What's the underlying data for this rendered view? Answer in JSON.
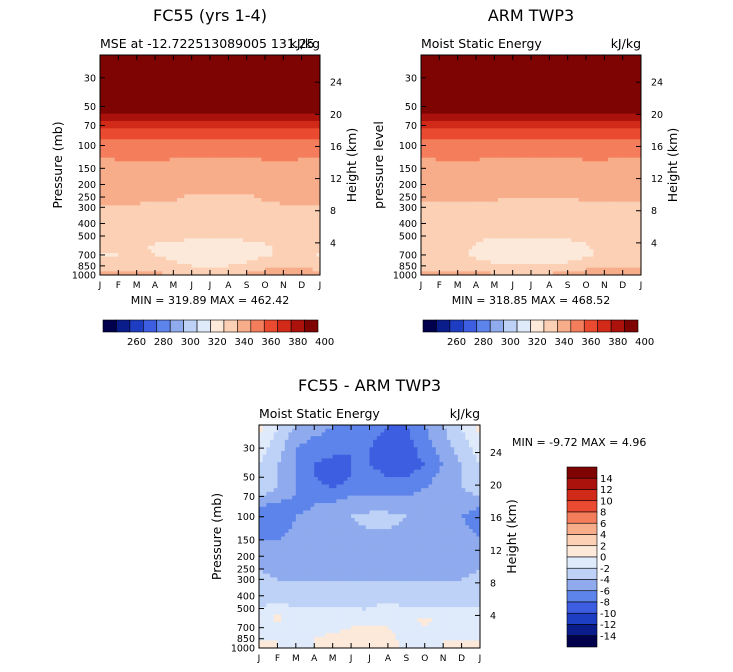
{
  "chart_data": [
    {
      "type": "contour",
      "title": "FC55 (yrs 1-4)",
      "subtitle_left": "MSE at -12.722513089005 131.25",
      "subtitle_right": "kJ/kg",
      "ylabel": "Pressure (mb)",
      "ylabel_right": "Height (km)",
      "x_ticks": [
        "J",
        "F",
        "M",
        "A",
        "M",
        "J",
        "J",
        "A",
        "S",
        "O",
        "N",
        "D",
        "J"
      ],
      "pressure_ticks": [
        30,
        50,
        70,
        100,
        150,
        200,
        250,
        300,
        400,
        500,
        700,
        850,
        1000
      ],
      "height_ticks": [
        24,
        20,
        16,
        12,
        8,
        4
      ],
      "ylim": [
        1000,
        20
      ],
      "min_text": "MIN = 319.89 MAX = 462.42",
      "field": {
        "months": [
          "J",
          "F",
          "M",
          "A",
          "M",
          "J",
          "J",
          "A",
          "S",
          "O",
          "N",
          "D",
          "J"
        ],
        "pressure_levels": [
          20,
          30,
          40,
          50,
          60,
          70,
          85,
          100,
          150,
          200,
          250,
          300,
          400,
          500,
          600,
          700,
          850,
          1000
        ],
        "values": [
          [
            462,
            462,
            462,
            462,
            462,
            462,
            462,
            462,
            462,
            462,
            462,
            462,
            462
          ],
          [
            430,
            431,
            432,
            432,
            431,
            430,
            430,
            431,
            432,
            432,
            431,
            430,
            430
          ],
          [
            410,
            411,
            411,
            411,
            410,
            410,
            410,
            410,
            410,
            410,
            410,
            410,
            410
          ],
          [
            398,
            399,
            400,
            400,
            399,
            398,
            398,
            398,
            399,
            400,
            400,
            399,
            398
          ],
          [
            385,
            386,
            386,
            386,
            385,
            385,
            385,
            385,
            386,
            386,
            386,
            385,
            385
          ],
          [
            371,
            372,
            373,
            373,
            372,
            371,
            371,
            371,
            372,
            373,
            373,
            372,
            371
          ],
          [
            361,
            362,
            362,
            362,
            361,
            361,
            361,
            361,
            362,
            362,
            362,
            361,
            361
          ],
          [
            354,
            355,
            355,
            355,
            354,
            354,
            354,
            354,
            355,
            355,
            355,
            354,
            354
          ],
          [
            347,
            347,
            348,
            348,
            347,
            346,
            346,
            346,
            346,
            347,
            348,
            347,
            347
          ],
          [
            345,
            345,
            345,
            345,
            344,
            343,
            343,
            343,
            343,
            345,
            345,
            345,
            345
          ],
          [
            343,
            343,
            342,
            341,
            341,
            339,
            339,
            339,
            339,
            341,
            342,
            343,
            343
          ],
          [
            339,
            339,
            339,
            338,
            338,
            338,
            337,
            337,
            337,
            338,
            339,
            339,
            339
          ],
          [
            337,
            336,
            336,
            335,
            335,
            335,
            335,
            335,
            335,
            335,
            336,
            336,
            337
          ],
          [
            335,
            334,
            334,
            333,
            333,
            332,
            332,
            332,
            333,
            333,
            334,
            334,
            335
          ],
          [
            333,
            332,
            332,
            329,
            327,
            326,
            325,
            325,
            326,
            329,
            332,
            333,
            333
          ],
          [
            329,
            330,
            332,
            330,
            327,
            322,
            321,
            322,
            325,
            329,
            332,
            333,
            329
          ],
          [
            336,
            336,
            336,
            335,
            333,
            330,
            329,
            330,
            333,
            336,
            337,
            337,
            336
          ],
          [
            345,
            345,
            345,
            343,
            340,
            340,
            340,
            340,
            342,
            346,
            347,
            346,
            345
          ]
        ]
      },
      "colorbar": {
        "labels": [
          "260",
          "280",
          "300",
          "320",
          "340",
          "360",
          "380",
          "400"
        ]
      }
    },
    {
      "type": "contour",
      "title": "ARM TWP3",
      "subtitle_left": "Moist Static Energy",
      "subtitle_right": "kJ/kg",
      "ylabel": "pressure level",
      "ylabel_right": "Height (km)",
      "x_ticks": [
        "J",
        "F",
        "M",
        "A",
        "M",
        "J",
        "J",
        "A",
        "S",
        "O",
        "N",
        "D",
        "J"
      ],
      "pressure_ticks": [
        30,
        50,
        70,
        100,
        150,
        200,
        250,
        300,
        400,
        500,
        700,
        850,
        1000
      ],
      "height_ticks": [
        24,
        20,
        16,
        12,
        8,
        4
      ],
      "ylim": [
        1000,
        20
      ],
      "min_text": "MIN = 318.85 MAX = 468.52",
      "field": {
        "months": [
          "J",
          "F",
          "M",
          "A",
          "M",
          "J",
          "J",
          "A",
          "S",
          "O",
          "N",
          "D",
          "J"
        ],
        "pressure_levels": [
          20,
          30,
          40,
          50,
          60,
          70,
          85,
          100,
          150,
          200,
          250,
          300,
          400,
          500,
          600,
          700,
          850,
          1000
        ],
        "values": [
          [
            468,
            468,
            468,
            468,
            468,
            468,
            468,
            468,
            468,
            468,
            468,
            468,
            468
          ],
          [
            440,
            440,
            440,
            440,
            440,
            440,
            440,
            440,
            440,
            440,
            440,
            440,
            440
          ],
          [
            412,
            412,
            412,
            412,
            412,
            412,
            412,
            412,
            412,
            412,
            412,
            412,
            412
          ],
          [
            398,
            399,
            400,
            401,
            400,
            399,
            399,
            399,
            399,
            400,
            400,
            399,
            398
          ],
          [
            386,
            387,
            387,
            387,
            386,
            386,
            386,
            386,
            387,
            387,
            387,
            386,
            386
          ],
          [
            373,
            373,
            374,
            374,
            373,
            372,
            372,
            372,
            373,
            374,
            374,
            373,
            373
          ],
          [
            362,
            362,
            363,
            363,
            362,
            362,
            362,
            362,
            362,
            363,
            363,
            362,
            362
          ],
          [
            354,
            355,
            355,
            355,
            354,
            354,
            354,
            354,
            354,
            355,
            355,
            354,
            354
          ],
          [
            347,
            347,
            347,
            347,
            347,
            347,
            347,
            347,
            347,
            347,
            347,
            347,
            347
          ],
          [
            345,
            345,
            344,
            344,
            343,
            343,
            343,
            343,
            344,
            344,
            345,
            345,
            345
          ],
          [
            341,
            341,
            341,
            341,
            341,
            340,
            340,
            340,
            340,
            341,
            341,
            341,
            341
          ],
          [
            339,
            339,
            339,
            339,
            338,
            338,
            338,
            338,
            338,
            339,
            339,
            339,
            339
          ],
          [
            336,
            336,
            336,
            335,
            334,
            334,
            334,
            334,
            335,
            336,
            336,
            336,
            336
          ],
          [
            334,
            334,
            334,
            333,
            331,
            331,
            331,
            331,
            332,
            334,
            334,
            334,
            334
          ],
          [
            333,
            333,
            333,
            329,
            325,
            324,
            324,
            324,
            326,
            329,
            333,
            333,
            333
          ],
          [
            333,
            333,
            333,
            328,
            324,
            321,
            320,
            321,
            324,
            328,
            333,
            333,
            333
          ],
          [
            336,
            336,
            336,
            334,
            332,
            331,
            331,
            331,
            333,
            336,
            337,
            337,
            336
          ],
          [
            346,
            346,
            346,
            344,
            341,
            341,
            341,
            342,
            343,
            346,
            347,
            346,
            346
          ]
        ]
      },
      "colorbar": {
        "labels": [
          "260",
          "280",
          "300",
          "320",
          "340",
          "360",
          "380",
          "400"
        ]
      }
    },
    {
      "type": "contour",
      "title": "FC55 - ARM TWP3",
      "subtitle_left": "Moist Static Energy",
      "subtitle_right": "kJ/kg",
      "ylabel": "Pressure (mb)",
      "ylabel_right": "Height (km)",
      "x_ticks": [
        "J",
        "F",
        "M",
        "A",
        "M",
        "J",
        "J",
        "A",
        "S",
        "O",
        "N",
        "D",
        "J"
      ],
      "pressure_ticks": [
        30,
        50,
        70,
        100,
        150,
        200,
        250,
        300,
        400,
        500,
        700,
        850,
        1000
      ],
      "height_ticks": [
        24,
        20,
        16,
        12,
        8,
        4
      ],
      "ylim": [
        1000,
        20
      ],
      "min_text": "MIN =    -9.72 MAX =    4.96",
      "field": {
        "months": [
          "J",
          "F",
          "M",
          "A",
          "M",
          "J",
          "J",
          "A",
          "S",
          "O",
          "N",
          "D",
          "J"
        ],
        "pressure_levels": [
          20,
          30,
          40,
          50,
          60,
          70,
          85,
          100,
          150,
          200,
          250,
          300,
          400,
          500,
          600,
          700,
          850,
          1000
        ],
        "values": [
          [
            1,
            -2,
            -4,
            -5,
            -6,
            -6,
            -7,
            -8,
            -8,
            -6,
            -4,
            -2,
            1
          ],
          [
            -1,
            -3,
            -6,
            -7,
            -7,
            -8,
            -8,
            -9,
            -9,
            -7,
            -5,
            -3,
            -1
          ],
          [
            -2,
            -4,
            -6,
            -8,
            -9,
            -8,
            -8,
            -9,
            -9,
            -8,
            -6,
            -4,
            -2
          ],
          [
            -2,
            -4,
            -6,
            -8,
            -9.5,
            -8,
            -7,
            -8,
            -8,
            -7,
            -5,
            -4,
            -2
          ],
          [
            -3,
            -4,
            -6,
            -7,
            -8,
            -7,
            -7,
            -7,
            -7,
            -6,
            -5,
            -4,
            -3
          ],
          [
            -4,
            -5,
            -6,
            -6,
            -7,
            -6,
            -6,
            -6,
            -6,
            -5,
            -5,
            -5,
            -4
          ],
          [
            -6,
            -7,
            -7,
            -6,
            -5,
            -5,
            -5,
            -5,
            -5,
            -5,
            -5,
            -5,
            -6
          ],
          [
            -7,
            -8,
            -6,
            -5,
            -5,
            -4,
            -3,
            -3,
            -4,
            -5,
            -5,
            -6,
            -7
          ],
          [
            -6,
            -6,
            -5,
            -5,
            -5,
            -5,
            -5,
            -5,
            -5,
            -5,
            -5,
            -5,
            -6
          ],
          [
            -5,
            -5,
            -5,
            -5,
            -5,
            -5,
            -5,
            -5,
            -5,
            -5,
            -5,
            -5,
            -5
          ],
          [
            -4,
            -5,
            -5,
            -5,
            -5,
            -5,
            -5,
            -5,
            -5,
            -5,
            -5,
            -5,
            -4
          ],
          [
            -3,
            -4,
            -4,
            -4,
            -4,
            -4,
            -4,
            -4,
            -4,
            -4,
            -4,
            -4,
            -3
          ],
          [
            -3,
            -3,
            -3,
            -3,
            -3,
            -3,
            -3,
            -3,
            -3,
            -3,
            -3,
            -3,
            -3
          ],
          [
            -2,
            -1,
            -2,
            -2,
            -2,
            -2,
            -2,
            -1,
            -2,
            -2,
            -2,
            -2,
            -2
          ],
          [
            -1,
            0.5,
            -1,
            -1,
            -2,
            -2,
            -2,
            -1,
            -1,
            0.5,
            -1,
            -1,
            -1
          ],
          [
            -1,
            -1,
            -1,
            -1,
            -1,
            0,
            1,
            0,
            -1,
            0,
            -1,
            -1,
            -1
          ],
          [
            0,
            0,
            -1,
            0,
            1,
            2,
            1,
            1,
            -1,
            -1,
            0,
            0,
            0
          ],
          [
            0,
            0,
            0,
            0,
            1,
            2,
            1,
            1,
            -1,
            -1,
            0,
            0,
            0
          ]
        ]
      },
      "colorbar": {
        "labels": [
          "14",
          "12",
          "10",
          "8",
          "6",
          "4",
          "2",
          "0",
          "-2",
          "-4",
          "-6",
          "-8",
          "-10",
          "-12",
          "-14"
        ]
      }
    }
  ],
  "colors": {
    "abs_scale": [
      "#00004c",
      "#0a1d8a",
      "#1d3ec2",
      "#3d5ee0",
      "#5d84ea",
      "#8fabee",
      "#bdd2f6",
      "#dfeafb",
      "#fde9d9",
      "#fbd0b4",
      "#f8ad8a",
      "#f47d5c",
      "#ea4b30",
      "#d22a18",
      "#ac120c",
      "#7e0403"
    ],
    "diff_scale": [
      "#00004c",
      "#0a1d8a",
      "#1d3ec2",
      "#3d5ee0",
      "#5d84ea",
      "#8fabee",
      "#bdd2f6",
      "#dfeafb",
      "#fde9d9",
      "#fbd0b4",
      "#f8ad8a",
      "#f47d5c",
      "#ea4b30",
      "#d22a18",
      "#ac120c",
      "#7e0403"
    ]
  }
}
